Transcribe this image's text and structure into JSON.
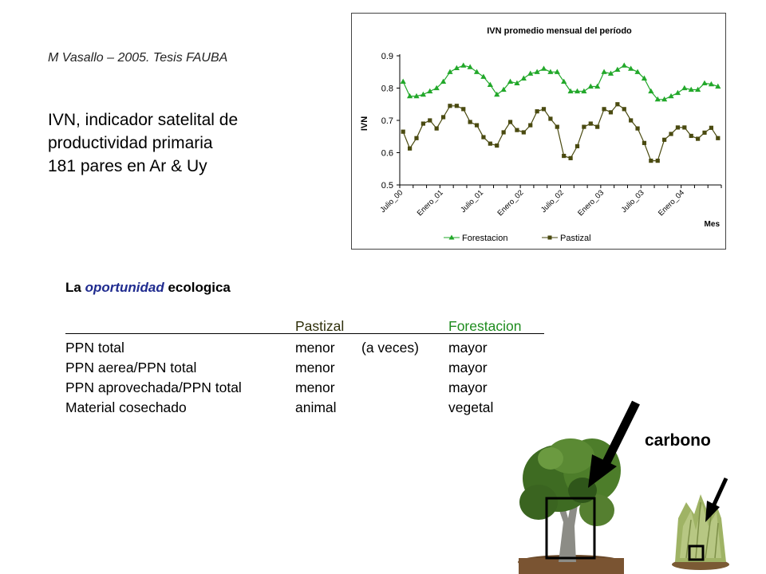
{
  "author_note": "M Vasallo – 2005. Tesis FAUBA",
  "intro_lines": [
    "IVN, indicador satelital de",
    "productividad primaria",
    "181 pares en Ar & Uy"
  ],
  "chart_data": {
    "type": "line",
    "title": "IVN promedio mensual del período",
    "ylabel": "IVN",
    "xlabel": "Mes",
    "ylim": [
      0.5,
      0.9
    ],
    "yticks": [
      "0.9",
      "0.8",
      "0.7",
      "0.6",
      "0.5"
    ],
    "xtick_labels": [
      "Julio_00",
      "Enero_01",
      "Julio_01",
      "Enero_02",
      "Julio_02",
      "Enero_03",
      "Julio_03",
      "Enero_04"
    ],
    "legend_position": "bottom",
    "series": [
      {
        "name": "Forestacion",
        "color": "#22a82a",
        "marker": "triangle",
        "values": [
          0.82,
          0.775,
          0.775,
          0.78,
          0.79,
          0.8,
          0.82,
          0.85,
          0.862,
          0.87,
          0.865,
          0.85,
          0.835,
          0.81,
          0.78,
          0.795,
          0.82,
          0.815,
          0.83,
          0.845,
          0.85,
          0.86,
          0.85,
          0.85,
          0.82,
          0.79,
          0.79,
          0.79,
          0.805,
          0.805,
          0.85,
          0.845,
          0.857,
          0.87,
          0.86,
          0.85,
          0.83,
          0.79,
          0.765,
          0.765,
          0.775,
          0.785,
          0.8,
          0.795,
          0.795,
          0.815,
          0.812,
          0.805
        ]
      },
      {
        "name": "Pastizal",
        "color": "#4a4a10",
        "marker": "square",
        "values": [
          0.665,
          0.613,
          0.645,
          0.69,
          0.7,
          0.675,
          0.71,
          0.745,
          0.745,
          0.735,
          0.695,
          0.685,
          0.648,
          0.628,
          0.622,
          0.663,
          0.695,
          0.67,
          0.663,
          0.685,
          0.728,
          0.735,
          0.705,
          0.68,
          0.59,
          0.583,
          0.62,
          0.68,
          0.69,
          0.68,
          0.735,
          0.725,
          0.75,
          0.735,
          0.7,
          0.675,
          0.63,
          0.575,
          0.575,
          0.64,
          0.658,
          0.678,
          0.678,
          0.652,
          0.643,
          0.662,
          0.677,
          0.645
        ]
      }
    ]
  },
  "table": {
    "title_prefix": "La",
    "title_emphasis": "oportunidad",
    "title_suffix": "ecologica",
    "col_pastizal": "Pastizal",
    "col_forestacion": "Forestacion",
    "rows": [
      {
        "label": "PPN total",
        "pastizal": "menor",
        "note": "(a veces)",
        "forestacion": "mayor"
      },
      {
        "label": "PPN aerea/PPN total",
        "pastizal": "menor",
        "note": "",
        "forestacion": "mayor"
      },
      {
        "label": "PPN aprovechada/PPN total",
        "pastizal": "menor",
        "note": "",
        "forestacion": "mayor"
      },
      {
        "label": "Material cosechado",
        "pastizal": "animal",
        "note": "",
        "forestacion": "vegetal"
      }
    ],
    "colors": {
      "forestacion": "#1e8c1e",
      "pastizal": "#2f2f0a",
      "emphasis": "#1f2b8f"
    }
  },
  "carbono_label": "carbono"
}
